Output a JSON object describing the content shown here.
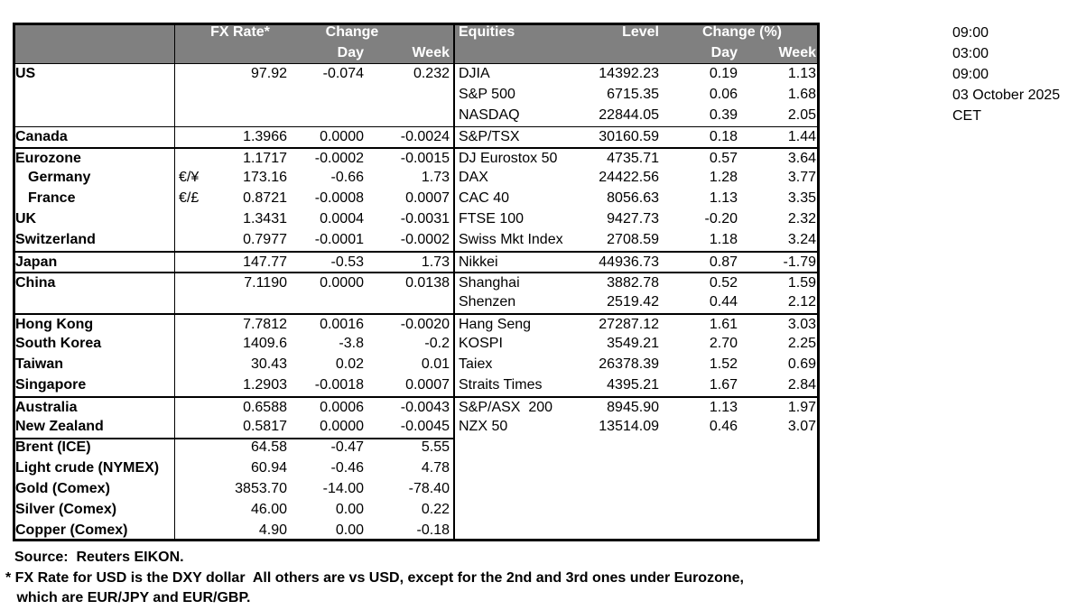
{
  "colors": {
    "header_bg": "#808080",
    "header_text": "#ffffff",
    "border": "#000000",
    "text": "#000000"
  },
  "table": {
    "header": {
      "fx_rate": "FX Rate*",
      "change": "Change",
      "day": "Day",
      "week": "Week",
      "equities": "Equities",
      "level": "Level",
      "change_pct": "Change (%)"
    },
    "rows": [
      {
        "fx": "US",
        "sym": "",
        "rate": "97.92",
        "day": "-0.074",
        "week": "0.232",
        "eq": "DJIA",
        "level": "14392.23",
        "eq_day": "0.19",
        "eq_week": "1.13",
        "border": "none",
        "indent": false
      },
      {
        "fx": "",
        "sym": "",
        "rate": "",
        "day": "",
        "week": "",
        "eq": "S&P 500",
        "level": "6715.35",
        "eq_day": "0.06",
        "eq_week": "1.68",
        "border": "none",
        "indent": false
      },
      {
        "fx": "",
        "sym": "",
        "rate": "",
        "day": "",
        "week": "",
        "eq": "NASDAQ",
        "level": "22844.05",
        "eq_day": "0.39",
        "eq_week": "2.05",
        "border": "none",
        "indent": false
      },
      {
        "fx": "Canada",
        "sym": "",
        "rate": "1.3966",
        "day": "0.0000",
        "week": "-0.0024",
        "eq": "S&P/TSX",
        "level": "30160.59",
        "eq_day": "0.18",
        "eq_week": "1.44",
        "border": "thin",
        "indent": false
      },
      {
        "fx": "Eurozone",
        "sym": "",
        "rate": "1.1717",
        "day": "-0.0002",
        "week": "-0.0015",
        "eq": "DJ Eurostox 50",
        "level": "4735.71",
        "eq_day": "0.57",
        "eq_week": "3.64",
        "border": "med",
        "indent": false
      },
      {
        "fx": "Germany",
        "sym": "€/¥",
        "rate": "173.16",
        "day": "-0.66",
        "week": "1.73",
        "eq": "DAX",
        "level": "24422.56",
        "eq_day": "1.28",
        "eq_week": "3.77",
        "border": "none",
        "indent": true
      },
      {
        "fx": "France",
        "sym": "€/£",
        "rate": "0.8721",
        "day": "-0.0008",
        "week": "0.0007",
        "eq": "CAC 40",
        "level": "8056.63",
        "eq_day": "1.13",
        "eq_week": "3.35",
        "border": "none",
        "indent": true
      },
      {
        "fx": "UK",
        "sym": "",
        "rate": "1.3431",
        "day": "0.0004",
        "week": "-0.0031",
        "eq": "FTSE 100",
        "level": "9427.73",
        "eq_day": "-0.20",
        "eq_week": "2.32",
        "border": "none",
        "indent": false
      },
      {
        "fx": "Switzerland",
        "sym": "",
        "rate": "0.7977",
        "day": "-0.0001",
        "week": "-0.0002",
        "eq": "Swiss Mkt Index",
        "level": "2708.59",
        "eq_day": "1.18",
        "eq_week": "3.24",
        "border": "none",
        "indent": false
      },
      {
        "fx": "Japan",
        "sym": "",
        "rate": "147.77",
        "day": "-0.53",
        "week": "1.73",
        "eq": "Nikkei",
        "level": "44936.73",
        "eq_day": "0.87",
        "eq_week": "-1.79",
        "border": "med",
        "indent": false
      },
      {
        "fx": "China",
        "sym": "",
        "rate": "7.1190",
        "day": "0.0000",
        "week": "0.0138",
        "eq": "Shanghai",
        "level": "3882.78",
        "eq_day": "0.52",
        "eq_week": "1.59",
        "border": "med",
        "indent": false
      },
      {
        "fx": "",
        "sym": "",
        "rate": "",
        "day": "",
        "week": "",
        "eq": "Shenzen",
        "level": "2519.42",
        "eq_day": "0.44",
        "eq_week": "2.12",
        "border": "none",
        "indent": false
      },
      {
        "fx": "Hong Kong",
        "sym": "",
        "rate": "7.7812",
        "day": "0.0016",
        "week": "-0.0020",
        "eq": "Hang Seng",
        "level": "27287.12",
        "eq_day": "1.61",
        "eq_week": "3.03",
        "border": "med",
        "indent": false
      },
      {
        "fx": "South Korea",
        "sym": "",
        "rate": "1409.6",
        "day": "-3.8",
        "week": "-0.2",
        "eq": "KOSPI",
        "level": "3549.21",
        "eq_day": "2.70",
        "eq_week": "2.25",
        "border": "none",
        "indent": false
      },
      {
        "fx": "Taiwan",
        "sym": "",
        "rate": "30.43",
        "day": "0.02",
        "week": "0.01",
        "eq": "Taiex",
        "level": "26378.39",
        "eq_day": "1.52",
        "eq_week": "0.69",
        "border": "none",
        "indent": false
      },
      {
        "fx": "Singapore",
        "sym": "",
        "rate": "1.2903",
        "day": "-0.0018",
        "week": "0.0007",
        "eq": "Straits Times",
        "level": "4395.21",
        "eq_day": "1.67",
        "eq_week": "2.84",
        "border": "none",
        "indent": false
      },
      {
        "fx": "Australia",
        "sym": "",
        "rate": "0.6588",
        "day": "0.0006",
        "week": "-0.0043",
        "eq": "S&P/ASX  200",
        "level": "8945.90",
        "eq_day": "1.13",
        "eq_week": "1.97",
        "border": "med",
        "indent": false
      },
      {
        "fx": "New Zealand",
        "sym": "",
        "rate": "0.5817",
        "day": "0.0000",
        "week": "-0.0045",
        "eq": "NZX 50",
        "level": "13514.09",
        "eq_day": "0.46",
        "eq_week": "3.07",
        "border": "none",
        "indent": false
      },
      {
        "fx": "Brent (ICE)",
        "sym": "",
        "rate": "64.58",
        "day": "-0.47",
        "week": "5.55",
        "eq": "",
        "level": "",
        "eq_day": "",
        "eq_week": "",
        "border": "fx",
        "indent": false
      },
      {
        "fx": "Light crude (NYMEX)",
        "sym": "",
        "rate": "60.94",
        "day": "-0.46",
        "week": "4.78",
        "eq": "",
        "level": "",
        "eq_day": "",
        "eq_week": "",
        "border": "none",
        "indent": false
      },
      {
        "fx": "Gold (Comex)",
        "sym": "",
        "rate": "3853.70",
        "day": "-14.00",
        "week": "-78.40",
        "eq": "",
        "level": "",
        "eq_day": "",
        "eq_week": "",
        "border": "none",
        "indent": false
      },
      {
        "fx": "Silver (Comex)",
        "sym": "",
        "rate": "46.00",
        "day": "0.00",
        "week": "0.22",
        "eq": "",
        "level": "",
        "eq_day": "",
        "eq_week": "",
        "border": "none",
        "indent": false
      },
      {
        "fx": "Copper (Comex)",
        "sym": "",
        "rate": "4.90",
        "day": "0.00",
        "week": "-0.18",
        "eq": "",
        "level": "",
        "eq_day": "",
        "eq_week": "",
        "border": "none",
        "indent": false
      }
    ]
  },
  "timestamps": [
    "09:00",
    "03:00",
    "09:00",
    "03 October 2025",
    "CET"
  ],
  "footer": {
    "source": "Source:  Reuters EIKON.",
    "note1": "* FX Rate for USD is the DXY dollar  All others are vs USD, except for the 2nd and 3rd ones under Eurozone,",
    "note2": " which are EUR/JPY and EUR/GBP."
  }
}
